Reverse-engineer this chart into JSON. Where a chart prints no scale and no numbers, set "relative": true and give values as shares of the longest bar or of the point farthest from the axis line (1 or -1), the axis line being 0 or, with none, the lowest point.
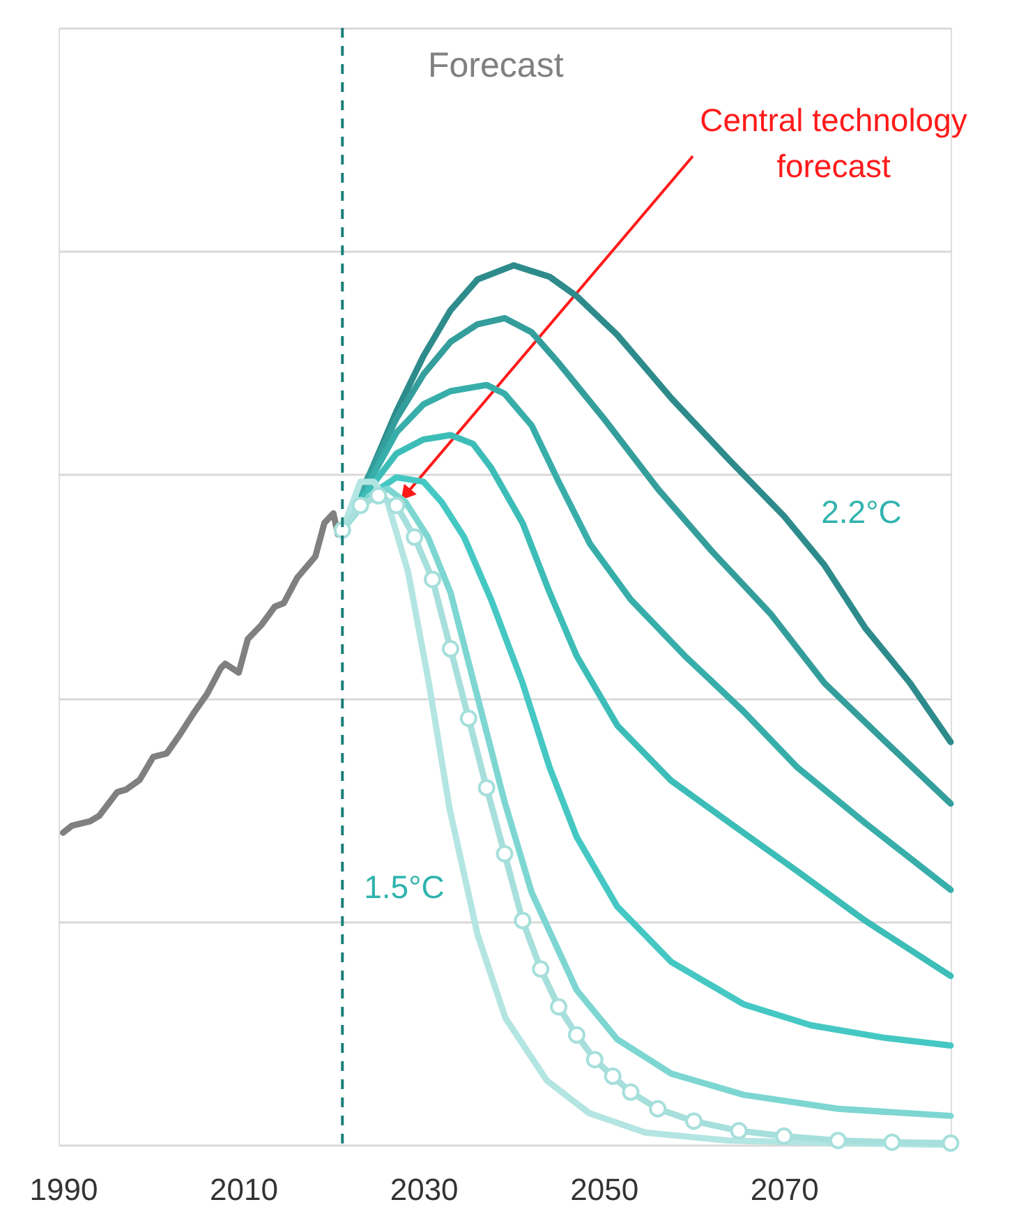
{
  "chart_data": {
    "type": "line",
    "relative": true,
    "xlim": [
      1989.5,
      2088.5
    ],
    "xticks": [
      1990,
      2010,
      2030,
      2050,
      2070
    ],
    "grid": "y",
    "tick_labels": "x",
    "line_style": "solid",
    "series": [
      {
        "color": "#808080",
        "marker": "none",
        "x": [
          1990,
          1991,
          1993,
          1994,
          1996,
          1997,
          1998.5,
          2000,
          2001.5,
          2003,
          2004.5,
          2006,
          2007.5,
          2008,
          2009.5,
          2010.5,
          2012,
          2013.5,
          2014.5,
          2016,
          2018,
          2019,
          2020,
          2020.5
        ],
        "values": [
          0.355,
          0.363,
          0.368,
          0.374,
          0.401,
          0.404,
          0.415,
          0.441,
          0.445,
          0.467,
          0.491,
          0.513,
          0.542,
          0.547,
          0.537,
          0.575,
          0.591,
          0.612,
          0.616,
          0.645,
          0.669,
          0.707,
          0.718,
          0.694
        ]
      },
      {
        "color": "#2e8b8b",
        "marker": "none",
        "x": [
          2021,
          2024,
          2027,
          2030,
          2033,
          2036,
          2040,
          2044,
          2047,
          2051.5,
          2057.5,
          2064,
          2070,
          2074.5,
          2079,
          2084,
          2088.5
        ],
        "values": [
          0.699,
          0.762,
          0.834,
          0.897,
          0.949,
          0.984,
          1.0,
          0.987,
          0.965,
          0.921,
          0.849,
          0.778,
          0.715,
          0.659,
          0.588,
          0.525,
          0.458
        ]
      },
      {
        "color": "#349e9c",
        "marker": "none",
        "x": [
          2021,
          2024,
          2027,
          2030,
          2033,
          2036,
          2039,
          2042,
          2045,
          2050,
          2056,
          2062,
          2068.5,
          2074.5,
          2081,
          2088.5
        ],
        "values": [
          0.699,
          0.762,
          0.826,
          0.876,
          0.913,
          0.933,
          0.94,
          0.924,
          0.889,
          0.826,
          0.746,
          0.675,
          0.604,
          0.525,
          0.461,
          0.388
        ]
      },
      {
        "color": "#38aeaa",
        "marker": "none",
        "x": [
          2021,
          2024,
          2027,
          2030,
          2033,
          2037,
          2039,
          2042,
          2045,
          2048.5,
          2053,
          2059,
          2065.5,
          2071.5,
          2079,
          2088.5
        ],
        "values": [
          0.699,
          0.754,
          0.81,
          0.842,
          0.857,
          0.864,
          0.854,
          0.818,
          0.754,
          0.683,
          0.62,
          0.556,
          0.493,
          0.429,
          0.366,
          0.29
        ]
      },
      {
        "color": "#3dbdb8",
        "marker": "none",
        "x": [
          2021,
          2024,
          2027,
          2030,
          2033,
          2035.5,
          2037.5,
          2041,
          2044,
          2047,
          2051.5,
          2057.5,
          2064,
          2071.5,
          2079,
          2088.5
        ],
        "values": [
          0.699,
          0.746,
          0.786,
          0.802,
          0.807,
          0.797,
          0.77,
          0.707,
          0.628,
          0.556,
          0.477,
          0.414,
          0.366,
          0.311,
          0.255,
          0.192
        ]
      },
      {
        "color": "#45c8c3",
        "marker": "none",
        "x": [
          2021,
          2024,
          2027,
          2030,
          2032,
          2034.5,
          2037.5,
          2041,
          2044,
          2047,
          2051.5,
          2057.5,
          2065.5,
          2073,
          2081,
          2088.5
        ],
        "values": [
          0.699,
          0.738,
          0.759,
          0.754,
          0.731,
          0.691,
          0.62,
          0.525,
          0.429,
          0.35,
          0.271,
          0.208,
          0.16,
          0.136,
          0.122,
          0.113
        ]
      },
      {
        "color": "#7dd6d2",
        "marker": "none",
        "x": [
          2021,
          2024,
          2026,
          2028,
          2030.5,
          2033,
          2036,
          2039,
          2042,
          2047,
          2051.5,
          2057.5,
          2065.5,
          2076,
          2088.5
        ],
        "values": [
          0.699,
          0.738,
          0.746,
          0.731,
          0.691,
          0.628,
          0.509,
          0.39,
          0.287,
          0.176,
          0.12,
          0.081,
          0.057,
          0.041,
          0.033
        ]
      },
      {
        "color": "#b3e5e2",
        "marker": "none",
        "x": [
          2021,
          2023,
          2024.5,
          2026,
          2028.3,
          2030.6,
          2032.9,
          2036,
          2039.1,
          2043.7,
          2048.4,
          2054.6,
          2063.8,
          2076,
          2088.5
        ],
        "values": [
          0.699,
          0.754,
          0.754,
          0.731,
          0.651,
          0.525,
          0.382,
          0.239,
          0.144,
          0.073,
          0.036,
          0.014,
          0.005,
          0.002,
          0.0
        ]
      },
      {
        "color": "#a6dfdb",
        "marker": "circle",
        "x": [
          2021,
          2023,
          2025,
          2027,
          2029,
          2031,
          2033,
          2035,
          2037,
          2039,
          2041,
          2043,
          2045,
          2047,
          2049,
          2051,
          2053,
          2056,
          2060,
          2065,
          2070,
          2076,
          2082,
          2088.5
        ],
        "values": [
          0.699,
          0.727,
          0.738,
          0.727,
          0.691,
          0.643,
          0.564,
          0.485,
          0.406,
          0.331,
          0.255,
          0.2,
          0.157,
          0.125,
          0.097,
          0.078,
          0.06,
          0.041,
          0.027,
          0.016,
          0.01,
          0.005,
          0.003,
          0.002
        ]
      }
    ],
    "ref_lines": [
      {
        "axis": "x",
        "value": 2021,
        "label": "Forecast",
        "color": "#1a7f7a",
        "line_style": "dashed"
      }
    ],
    "annotations": [
      "Central technology forecast",
      "2.2°C",
      "1.5°C"
    ]
  }
}
